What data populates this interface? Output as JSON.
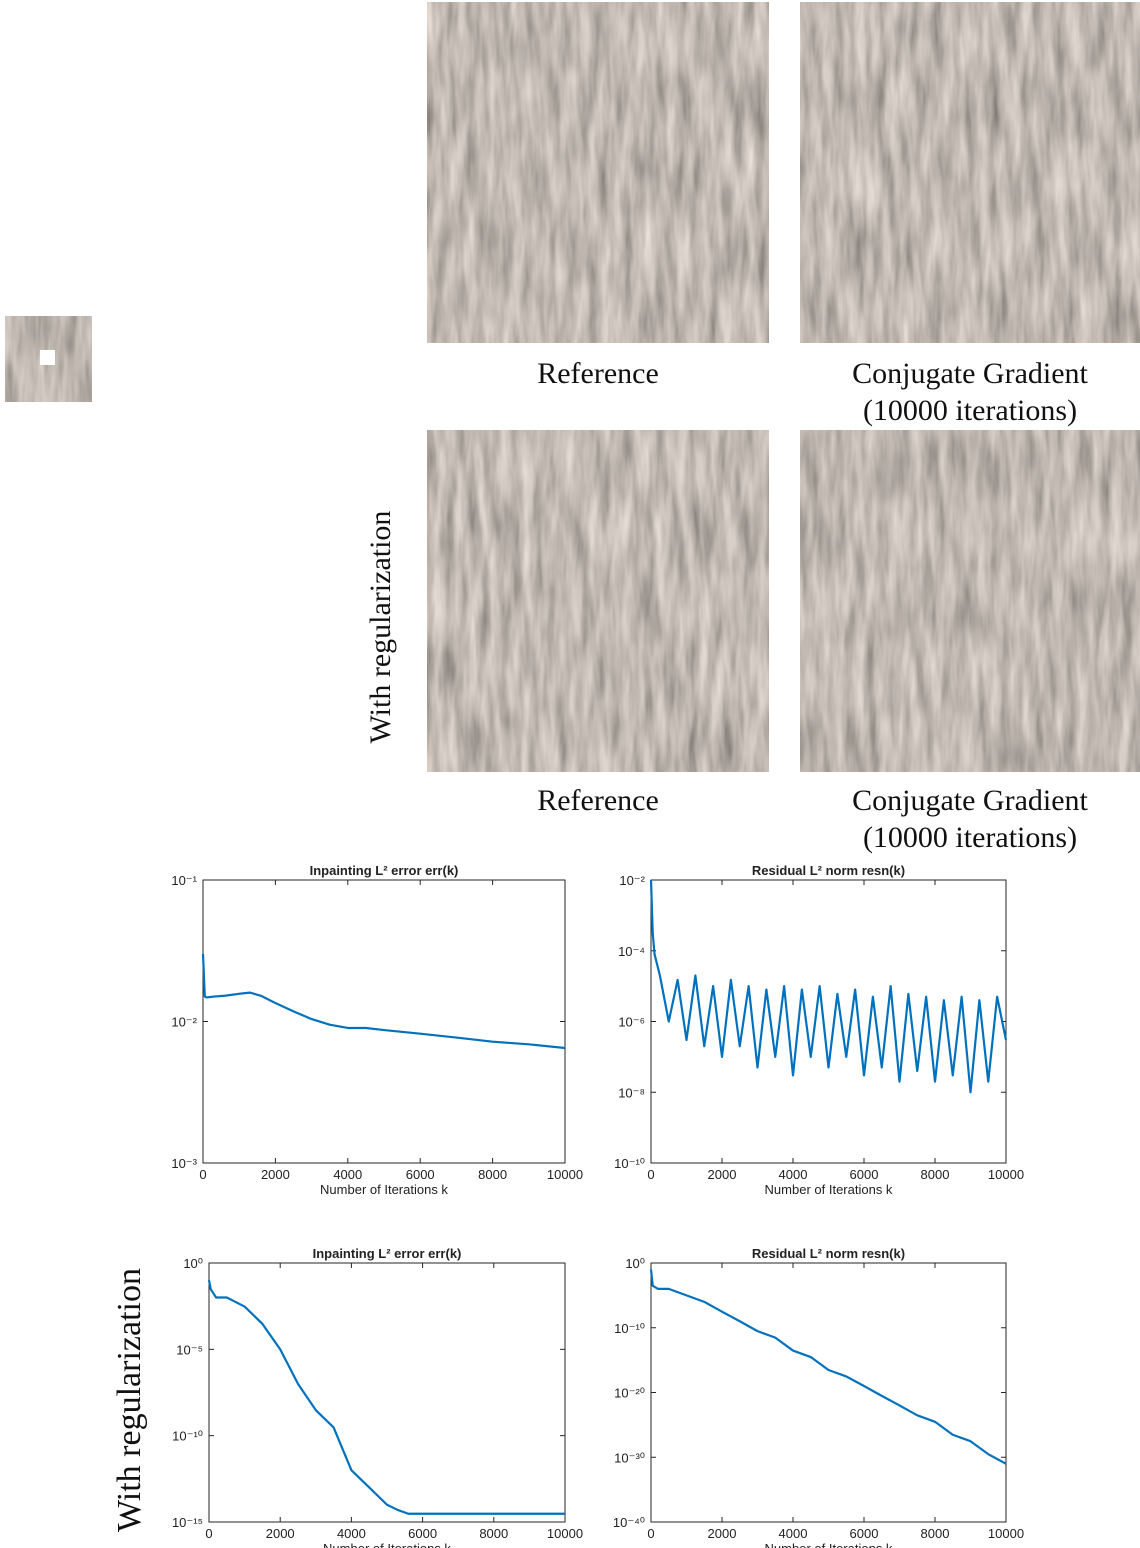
{
  "image_rows": [
    {
      "captions": [
        [
          "Reference"
        ],
        [
          "Conjugate Gradient",
          "(10000 iterations)"
        ]
      ]
    },
    {
      "row_label": "With regularization",
      "captions": [
        [
          "Reference"
        ],
        [
          "Conjugate Gradient",
          "(10000 iterations)"
        ]
      ]
    }
  ],
  "plot_row_label": "With regularization",
  "chart_data": [
    {
      "type": "line",
      "title": "Inpainting L² error err(k)",
      "xlabel": "Number of Iterations k",
      "log_y": true,
      "color": "#0072bd",
      "x": [
        0,
        50,
        100,
        300,
        600,
        1000,
        1300,
        1600,
        2000,
        2500,
        3000,
        3500,
        4000,
        4500,
        5000,
        6000,
        7000,
        8000,
        9000,
        10000
      ],
      "values": [
        0.03,
        0.015,
        0.0148,
        0.015,
        0.0152,
        0.0157,
        0.016,
        0.0152,
        0.0135,
        0.0118,
        0.0104,
        0.0095,
        0.009,
        0.009,
        0.0087,
        0.0082,
        0.0077,
        0.0072,
        0.0069,
        0.0065
      ],
      "xlim": [
        0,
        10000
      ],
      "xticks": [
        0,
        2000,
        4000,
        6000,
        8000,
        10000
      ],
      "ylim": [
        0.001,
        0.1
      ],
      "yticks": [
        {
          "value": 0.001,
          "label": "10⁻³"
        },
        {
          "value": 0.01,
          "label": "10⁻²"
        },
        {
          "value": 0.1,
          "label": "10⁻¹"
        }
      ]
    },
    {
      "type": "line",
      "title": "Residual L² norm resn(k)",
      "xlabel": "Number of Iterations k",
      "log_y": true,
      "color": "#0072bd",
      "x": [
        0,
        50,
        100,
        250,
        500,
        750,
        1000,
        1250,
        1500,
        1750,
        2000,
        2250,
        2500,
        2750,
        3000,
        3250,
        3500,
        3750,
        4000,
        4250,
        4500,
        4750,
        5000,
        5250,
        5500,
        5750,
        6000,
        6250,
        6500,
        6750,
        7000,
        7250,
        7500,
        7750,
        8000,
        8250,
        8500,
        8750,
        9000,
        9250,
        9500,
        9750,
        10000
      ],
      "values": [
        0.01,
        0.0003,
        8e-05,
        2e-05,
        1e-06,
        1.5e-05,
        3e-07,
        2e-05,
        2e-07,
        1e-05,
        1e-07,
        1.5e-05,
        2e-07,
        1e-05,
        5e-08,
        8e-06,
        1e-07,
        1e-05,
        3e-08,
        8e-06,
        1e-07,
        1e-05,
        5e-08,
        6e-06,
        1e-07,
        8e-06,
        3e-08,
        5e-06,
        5e-08,
        1e-05,
        2e-08,
        6e-06,
        4e-08,
        5e-06,
        2e-08,
        4e-06,
        3e-08,
        5e-06,
        1e-08,
        4e-06,
        2e-08,
        5e-06,
        3e-07
      ],
      "xlim": [
        0,
        10000
      ],
      "xticks": [
        0,
        2000,
        4000,
        6000,
        8000,
        10000
      ],
      "ylim": [
        1e-10,
        0.01
      ],
      "yticks": [
        {
          "value": 1e-10,
          "label": "10⁻¹⁰"
        },
        {
          "value": 1e-08,
          "label": "10⁻⁸"
        },
        {
          "value": 1e-06,
          "label": "10⁻⁶"
        },
        {
          "value": 0.0001,
          "label": "10⁻⁴"
        },
        {
          "value": 0.01,
          "label": "10⁻²"
        }
      ]
    },
    {
      "type": "line",
      "title": "Inpainting L² error err(k)",
      "xlabel": "Number of Iterations k",
      "log_y": true,
      "color": "#0072bd",
      "x": [
        0,
        50,
        200,
        500,
        1000,
        1500,
        2000,
        2500,
        3000,
        3500,
        4000,
        4500,
        5000,
        5300,
        5600,
        6000,
        8000,
        10000
      ],
      "values": [
        0.1,
        0.03,
        0.01,
        0.01,
        0.003,
        0.0003,
        1e-05,
        1e-07,
        3e-09,
        3e-10,
        1e-12,
        1e-13,
        1e-14,
        5e-15,
        3e-15,
        3e-15,
        3e-15,
        3e-15
      ],
      "xlim": [
        0,
        10000
      ],
      "xticks": [
        0,
        2000,
        4000,
        6000,
        8000,
        10000
      ],
      "ylim": [
        1e-15,
        1
      ],
      "yticks": [
        {
          "value": 1e-15,
          "label": "10⁻¹⁵"
        },
        {
          "value": 1e-10,
          "label": "10⁻¹⁰"
        },
        {
          "value": 1e-05,
          "label": "10⁻⁵"
        },
        {
          "value": 1,
          "label": "10⁰"
        }
      ]
    },
    {
      "type": "line",
      "title": "Residual L² norm resn(k)",
      "xlabel": "Number of Iterations k",
      "log_y": true,
      "color": "#0072bd",
      "x": [
        0,
        50,
        200,
        500,
        1000,
        1500,
        2000,
        2500,
        3000,
        3500,
        4000,
        4500,
        5000,
        5500,
        6000,
        6500,
        7000,
        7500,
        8000,
        8500,
        9000,
        9500,
        10000
      ],
      "values": [
        0.1,
        0.0003,
        0.0001,
        0.0001,
        1e-05,
        1e-06,
        3e-08,
        1e-09,
        3e-11,
        3e-12,
        3e-14,
        3e-15,
        3e-17,
        3e-18,
        1e-19,
        3e-21,
        1e-22,
        3e-24,
        3e-25,
        3e-27,
        3e-28,
        3e-30,
        1e-31
      ],
      "xlim": [
        0,
        10000
      ],
      "xticks": [
        0,
        2000,
        4000,
        6000,
        8000,
        10000
      ],
      "ylim": [
        1e-40,
        1
      ],
      "yticks": [
        {
          "value": 1e-40,
          "label": "10⁻⁴⁰"
        },
        {
          "value": 1e-30,
          "label": "10⁻³⁰"
        },
        {
          "value": 1e-20,
          "label": "10⁻²⁰"
        },
        {
          "value": 1e-10,
          "label": "10⁻¹⁰"
        },
        {
          "value": 1,
          "label": "10⁰"
        }
      ]
    }
  ]
}
